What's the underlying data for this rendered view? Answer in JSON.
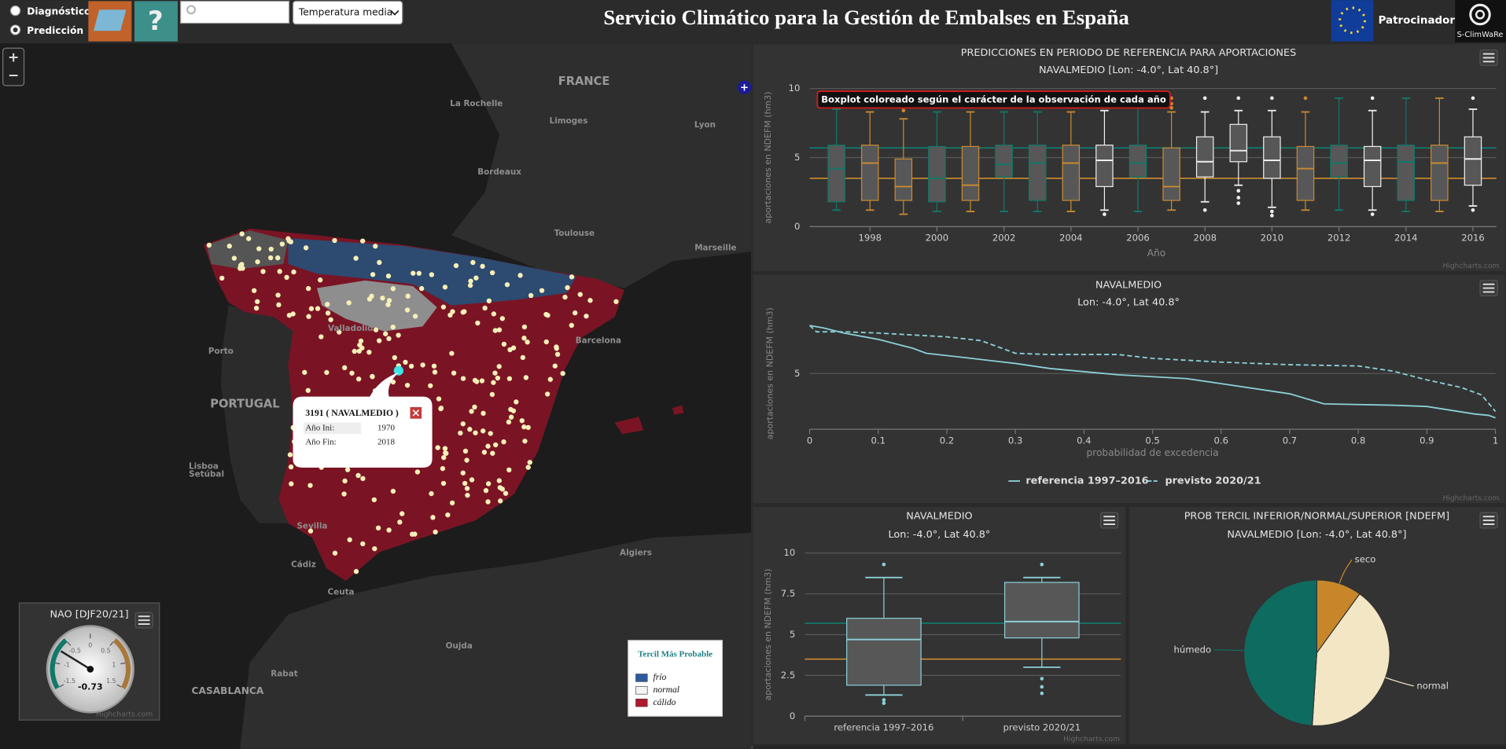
{
  "header": {
    "options": [
      "Diagnóstico",
      "Predicción"
    ],
    "help": "?",
    "select": "Temperatura media",
    "title": "Servicio Climático para la Gestión de Embalses en España",
    "sponsors": "Patrocinadores",
    "logo": "S-ClimWaRe"
  },
  "map": {
    "zoom": [
      "+",
      "−"
    ],
    "expand": "+",
    "labels": [
      "FRANCE",
      "La Rochelle",
      "Limoges",
      "Lyon",
      "Bordeaux",
      "Toulouse",
      "Marseille",
      "Barcelona",
      "Valladolid",
      "Porto",
      "PORTUGAL",
      "Lisboa",
      "Setúbal",
      "Sevilla",
      "Cádiz",
      "Ceuta",
      "Algiers",
      "Rabat",
      "CASABLANCA",
      "Oujda"
    ],
    "popup": {
      "title": "3191 ( NAVALMEDIO )",
      "rows": [
        [
          "Año Ini:",
          1970
        ],
        [
          "Año Fin:",
          2018
        ]
      ]
    },
    "legend": {
      "title": "Tercil Más Probable",
      "items": [
        {
          "name": "frío",
          "color": "#2c5aa0"
        },
        {
          "name": "normal",
          "color": "#f4f4f4"
        },
        {
          "name": "cálido",
          "color": "#b0192e"
        }
      ]
    }
  },
  "chart_data": [
    {
      "type": "boxplot",
      "title": "PREDICCIONES EN PERIODO DE REFERENCIA PARA APORTACIONES",
      "subtitle": "NAVALMEDIO [Lon: -4.0°, Lat 40.8°]",
      "annotation": "Boxplot coloreado según el carácter de la observación de cada año",
      "x_label": "Año",
      "y_label": "aportaciones en NDEFM (hm3)",
      "credit": "Highcharts.com",
      "x": [
        1997,
        1998,
        1999,
        2000,
        2001,
        2002,
        2003,
        2004,
        2005,
        2006,
        2007,
        2008,
        2009,
        2010,
        2011,
        2012,
        2013,
        2014,
        2015,
        2016
      ],
      "xlim": [
        1996.2,
        2016.7
      ],
      "xticks": [
        1998,
        2000,
        2002,
        2004,
        2006,
        2008,
        2010,
        2012,
        2014,
        2016
      ],
      "ylim": [
        0,
        10
      ],
      "yticks": [
        0,
        5,
        10
      ],
      "grid": true,
      "reference_lines": [
        {
          "value": 5.7,
          "color": "#0e7f70"
        },
        {
          "value": 3.5,
          "color": "#d9952f"
        }
      ],
      "boxes": [
        {
          "low": 1.2,
          "q1": 1.8,
          "median": 4.2,
          "q3": 5.9,
          "high": 8.5,
          "outliers": [],
          "color": "#11786a"
        },
        {
          "low": 1.2,
          "q1": 1.9,
          "median": 4.6,
          "q3": 5.9,
          "high": 8.3,
          "outliers": [],
          "color": "#c98a32"
        },
        {
          "low": 0.9,
          "q1": 1.9,
          "median": 2.9,
          "q3": 4.9,
          "high": 7.8,
          "outliers": [
            8.4
          ],
          "color": "#c98a32"
        },
        {
          "low": 1.1,
          "q1": 1.8,
          "median": 3.5,
          "q3": 5.8,
          "high": 8.3,
          "outliers": [],
          "color": "#11786a"
        },
        {
          "low": 1.1,
          "q1": 1.9,
          "median": 3.0,
          "q3": 5.8,
          "high": 8.3,
          "outliers": [],
          "color": "#c98a32"
        },
        {
          "low": 1.1,
          "q1": 3.6,
          "median": 4.5,
          "q3": 5.9,
          "high": 8.3,
          "outliers": [],
          "color": "#11786a"
        },
        {
          "low": 1.1,
          "q1": 1.9,
          "median": 4.6,
          "q3": 5.9,
          "high": 8.3,
          "outliers": [],
          "color": "#11786a"
        },
        {
          "low": 1.1,
          "q1": 1.9,
          "median": 4.6,
          "q3": 5.9,
          "high": 8.3,
          "outliers": [],
          "color": "#c98a32"
        },
        {
          "low": 1.2,
          "q1": 2.9,
          "median": 4.8,
          "q3": 5.9,
          "high": 8.4,
          "outliers": [
            0.9
          ],
          "color": "#eeeeee"
        },
        {
          "low": 1.1,
          "q1": 3.6,
          "median": 4.6,
          "q3": 5.9,
          "high": 9.4,
          "outliers": [],
          "color": "#11786a"
        },
        {
          "low": 1.2,
          "q1": 1.9,
          "median": 2.9,
          "q3": 5.7,
          "high": 8.3,
          "outliers": [
            8.6,
            8.9,
            9.3
          ],
          "color": "#c98a32"
        },
        {
          "low": 1.8,
          "q1": 3.6,
          "median": 4.7,
          "q3": 6.5,
          "high": 8.3,
          "outliers": [
            9.3,
            1.2
          ],
          "color": "#eeeeee"
        },
        {
          "low": 3.0,
          "q1": 4.7,
          "median": 5.5,
          "q3": 7.4,
          "high": 8.4,
          "outliers": [
            9.3,
            2.6,
            2.1,
            1.7
          ],
          "color": "#eeeeee"
        },
        {
          "low": 1.4,
          "q1": 3.5,
          "median": 4.8,
          "q3": 6.5,
          "high": 8.4,
          "outliers": [
            9.3,
            1.1,
            0.8
          ],
          "color": "#eeeeee"
        },
        {
          "low": 1.2,
          "q1": 1.9,
          "median": 4.2,
          "q3": 5.8,
          "high": 8.3,
          "outliers": [
            9.3
          ],
          "color": "#c98a32"
        },
        {
          "low": 1.2,
          "q1": 3.6,
          "median": 4.6,
          "q3": 5.9,
          "high": 9.3,
          "outliers": [],
          "color": "#11786a"
        },
        {
          "low": 1.2,
          "q1": 2.9,
          "median": 4.8,
          "q3": 5.8,
          "high": 8.4,
          "outliers": [
            9.3,
            0.9
          ],
          "color": "#eeeeee"
        },
        {
          "low": 1.1,
          "q1": 1.9,
          "median": 4.7,
          "q3": 5.9,
          "high": 9.3,
          "outliers": [],
          "color": "#11786a"
        },
        {
          "low": 1.1,
          "q1": 1.9,
          "median": 4.6,
          "q3": 5.9,
          "high": 9.3,
          "outliers": [],
          "color": "#c98a32"
        },
        {
          "low": 1.5,
          "q1": 3.0,
          "median": 4.9,
          "q3": 6.5,
          "high": 8.5,
          "outliers": [
            9.3,
            1.2
          ],
          "color": "#eeeeee"
        }
      ]
    },
    {
      "type": "line",
      "title": "NAVALMEDIO",
      "subtitle": "Lon: -4.0°, Lat 40.8°",
      "x_label": "probabilidad de excedencia",
      "y_label": "aportaciones en NDEFM (hm3)",
      "credit": "Highcharts.com",
      "xlim": [
        0,
        1
      ],
      "xticks": [
        0,
        0.1,
        0.2,
        0.3,
        0.4,
        0.5,
        0.6,
        0.7,
        0.8,
        0.9,
        1
      ],
      "ylim": [
        0.6,
        9.4
      ],
      "yticks": [
        5
      ],
      "grid": true,
      "legend": "bottom",
      "series": [
        {
          "name": "referencia 1997–2016",
          "color": "#8ccfd6",
          "dashed": false,
          "x": [
            0,
            0.02,
            0.05,
            0.1,
            0.15,
            0.17,
            0.22,
            0.3,
            0.35,
            0.45,
            0.55,
            0.6,
            0.7,
            0.75,
            0.85,
            0.9,
            0.97,
            0.99,
            1
          ],
          "values": [
            8.8,
            8.6,
            8.2,
            7.7,
            7.0,
            6.6,
            6.3,
            5.8,
            5.4,
            4.9,
            4.6,
            4.2,
            3.4,
            2.6,
            2.5,
            2.4,
            1.8,
            1.7,
            1.5
          ]
        },
        {
          "name": "previsto 2020/21",
          "color": "#8ccfd6",
          "dashed": true,
          "x": [
            0,
            0.01,
            0.05,
            0.1,
            0.2,
            0.25,
            0.3,
            0.35,
            0.45,
            0.5,
            0.6,
            0.7,
            0.8,
            0.85,
            0.9,
            0.95,
            0.98,
            1
          ],
          "values": [
            8.8,
            8.3,
            8.3,
            8.2,
            7.9,
            7.6,
            6.6,
            6.5,
            6.5,
            6.2,
            5.9,
            5.7,
            5.6,
            5.2,
            4.5,
            3.9,
            3.3,
            2.0
          ]
        }
      ]
    },
    {
      "type": "boxplot",
      "title": "NAVALMEDIO",
      "subtitle": "Lon: -4.0°, Lat 40.8°",
      "y_label": "aportaciones en NDEFM (hm3)",
      "credit": "Highcharts.com",
      "categories": [
        "referencia 1997–2016",
        "previsto 2020/21"
      ],
      "ylim": [
        0,
        10
      ],
      "yticks": [
        0,
        2.5,
        5,
        7.5,
        10
      ],
      "grid": true,
      "reference_lines": [
        {
          "value": 5.7,
          "color": "#0e7f70"
        },
        {
          "value": 3.5,
          "color": "#d9952f"
        }
      ],
      "boxes": [
        {
          "low": 1.3,
          "q1": 1.9,
          "median": 4.7,
          "q3": 6.0,
          "high": 8.5,
          "outliers": [
            1.0,
            0.8,
            9.3
          ],
          "color": "#8ccfd6"
        },
        {
          "low": 3.0,
          "q1": 4.8,
          "median": 5.8,
          "q3": 8.2,
          "high": 8.5,
          "outliers": [
            9.3,
            2.3,
            1.8,
            1.4
          ],
          "color": "#8ccfd6"
        }
      ]
    },
    {
      "type": "pie",
      "title": "PROB TERCIL INFERIOR/NORMAL/SUPERIOR [NDEFM]",
      "subtitle": "NAVALMEDIO [Lon: -4.0°, Lat 40.8°]",
      "categories": [
        "seco",
        "normal",
        "húmedo"
      ],
      "values": [
        10,
        41,
        49
      ],
      "colors": [
        "#c8862a",
        "#f3e6c5",
        "#0e6b60"
      ]
    },
    {
      "type": "gauge",
      "title": "NAO [DJF20/21]",
      "value": -0.73,
      "ylim": [
        -1.5,
        1.5
      ],
      "yticks": [
        -1.5,
        -1,
        -0.5,
        0,
        0.5,
        1,
        1.5
      ],
      "credit": "Highcharts.com",
      "bands": [
        {
          "from": -1.5,
          "to": -0.5,
          "color": "#127868"
        },
        {
          "from": 0.5,
          "to": 1.5,
          "color": "#a8773a"
        }
      ]
    }
  ]
}
